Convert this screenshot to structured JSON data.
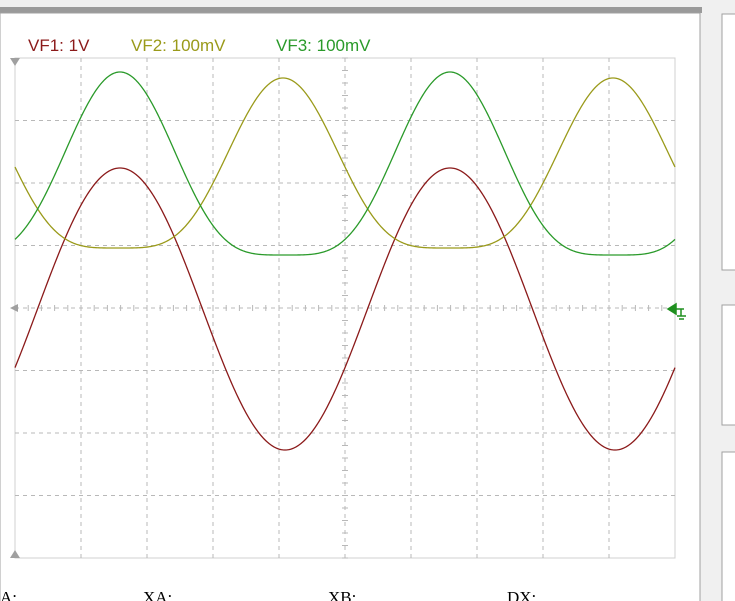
{
  "legend": [
    "VF1: 1V",
    "VF2: 100mV",
    "VF3: 100mV"
  ],
  "measurements": [
    "A:",
    "XA:",
    "XB:",
    "DX:"
  ]
}
